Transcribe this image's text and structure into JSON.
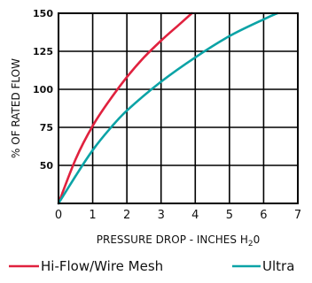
{
  "chart_data": {
    "type": "line",
    "xlabel": "PRESSURE DROP - INCHES H",
    "xlabel_sub": "2",
    "xlabel_suffix": "0",
    "ylabel": "% OF RATED FLOW",
    "xlim": [
      0,
      7
    ],
    "ylim": [
      25,
      150
    ],
    "x_ticks": [
      "0",
      "1",
      "2",
      "3",
      "4",
      "5",
      "6",
      "7"
    ],
    "y_ticks": [
      "50",
      "75",
      "100",
      "125",
      "150"
    ],
    "grid": true,
    "legend_position": "bottom",
    "series": [
      {
        "name": "Hi-Flow/Wire Mesh",
        "color": "#e0213e",
        "x": [
          0,
          0.5,
          1.0,
          1.5,
          2.0,
          2.5,
          3.0,
          3.5,
          3.9
        ],
        "y": [
          25,
          54,
          76,
          93,
          108,
          121,
          132,
          142,
          150
        ]
      },
      {
        "name": "Ultra",
        "color": "#0ba3a6",
        "x": [
          0,
          0.5,
          1.0,
          1.5,
          2.0,
          3.0,
          4.0,
          5.0,
          6.0,
          6.4
        ],
        "y": [
          25,
          43,
          60,
          74,
          86,
          105,
          121,
          135,
          146,
          150
        ]
      }
    ]
  }
}
